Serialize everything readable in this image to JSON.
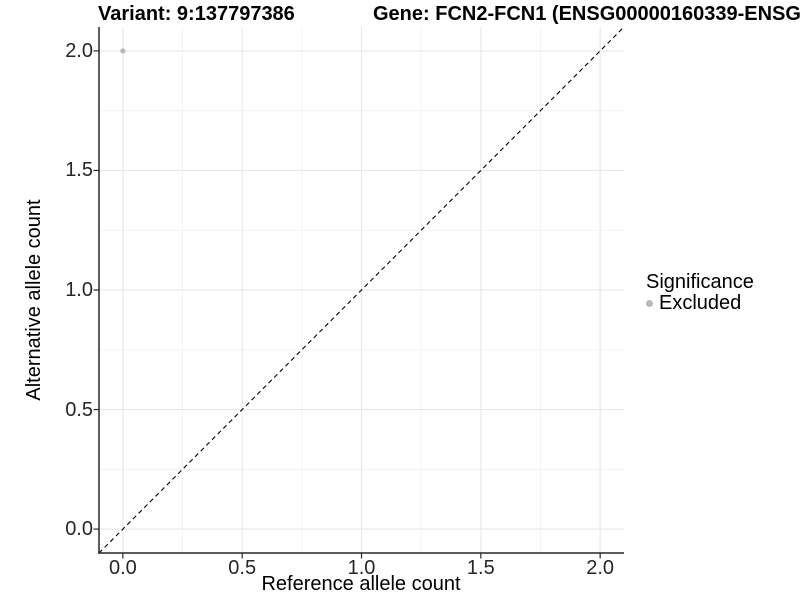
{
  "header": {
    "variant_title": "Variant: 9:137797386",
    "gene_title": "Gene: FCN2-FCN1 (ENSG00000160339-ENSG"
  },
  "chart_data": {
    "type": "scatter",
    "title_left": "Variant: 9:137797386",
    "title_right": "Gene: FCN2-FCN1 (ENSG00000160339-ENSG",
    "xlabel": "Reference allele count",
    "ylabel": "Alternative allele count",
    "x_tick_values": [
      0.0,
      0.5,
      1.0,
      1.5,
      2.0
    ],
    "x_tick_labels": [
      "0.0",
      "0.5",
      "1.0",
      "1.5",
      "2.0"
    ],
    "y_tick_values": [
      0.0,
      0.5,
      1.0,
      1.5,
      2.0
    ],
    "y_tick_labels": [
      "0.0",
      "0.5",
      "1.0",
      "1.5",
      "2.0"
    ],
    "xlim": [
      -0.1,
      2.1
    ],
    "ylim": [
      -0.1,
      2.1
    ],
    "grid": "major+minor",
    "points": [
      {
        "x": 0.0,
        "y": 2.0,
        "significance": "Excluded"
      }
    ],
    "reference_line": {
      "slope": 1,
      "intercept": 0,
      "style": "dashed",
      "color": "#000000"
    },
    "legend": {
      "title": "Significance",
      "position": "right",
      "entries": [
        {
          "label": "Excluded",
          "color": "#b9b9b9",
          "marker": "circle"
        }
      ]
    }
  },
  "colors": {
    "background": "#ffffff",
    "point": "#b9b9b9",
    "grid_major": "#e7e7e7",
    "grid_minor": "#f1f1f1",
    "axis": "#262626",
    "tick_label": "#262626",
    "title_text": "#000000"
  }
}
